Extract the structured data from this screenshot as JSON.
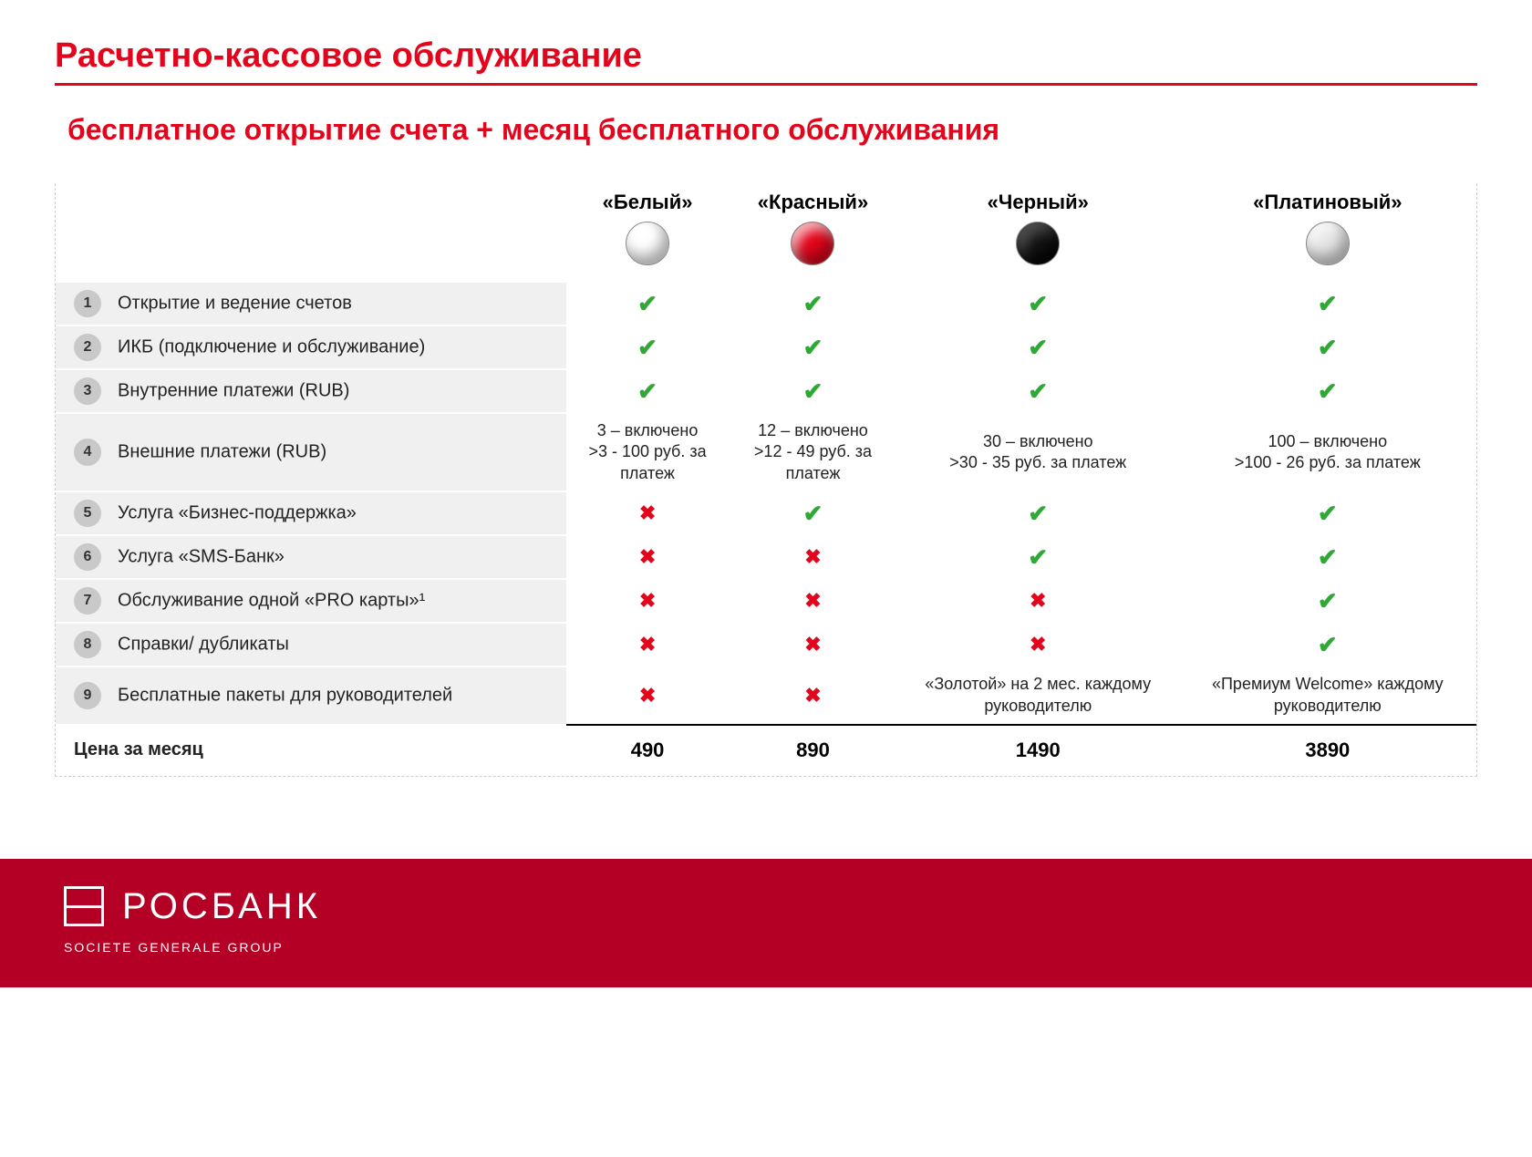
{
  "header": {
    "title": "Расчетно-кассовое обслуживание",
    "subtitle": "бесплатное открытие счета + месяц бесплатного обслуживания"
  },
  "colors": {
    "accent": "#e3051b",
    "check": "#2fa836",
    "cross": "#e3051b",
    "row_bg": "#f0f0f0",
    "footer_bg": "#b40024"
  },
  "packages": [
    {
      "name": "«Белый»",
      "ball_color": "#ffffff"
    },
    {
      "name": "«Красный»",
      "ball_color": "#e3051b"
    },
    {
      "name": "«Черный»",
      "ball_color": "#111111"
    },
    {
      "name": "«Платиновый»",
      "ball_color": "#e6e6e6"
    }
  ],
  "rows": [
    {
      "n": "1",
      "label": "Открытие и ведение счетов",
      "cells": [
        {
          "t": "check"
        },
        {
          "t": "check"
        },
        {
          "t": "check"
        },
        {
          "t": "check"
        }
      ]
    },
    {
      "n": "2",
      "label": "ИКБ (подключение и обслуживание)",
      "cells": [
        {
          "t": "check"
        },
        {
          "t": "check"
        },
        {
          "t": "check"
        },
        {
          "t": "check"
        }
      ]
    },
    {
      "n": "3",
      "label": "Внутренние платежи (RUB)",
      "cells": [
        {
          "t": "check"
        },
        {
          "t": "check"
        },
        {
          "t": "check"
        },
        {
          "t": "check"
        }
      ]
    },
    {
      "n": "4",
      "label": "Внешние платежи (RUB)",
      "cells": [
        {
          "t": "text",
          "v": "3 – включено\n>3 - 100 руб. за платеж"
        },
        {
          "t": "text",
          "v": "12 – включено\n>12 - 49 руб. за платеж"
        },
        {
          "t": "text",
          "v": "30 – включено\n>30 - 35 руб. за платеж"
        },
        {
          "t": "text",
          "v": "100 – включено\n>100 - 26 руб. за платеж"
        }
      ]
    },
    {
      "n": "5",
      "label": "Услуга «Бизнес-поддержка»",
      "cells": [
        {
          "t": "cross"
        },
        {
          "t": "check"
        },
        {
          "t": "check"
        },
        {
          "t": "check"
        }
      ]
    },
    {
      "n": "6",
      "label": "Услуга «SMS-Банк»",
      "cells": [
        {
          "t": "cross"
        },
        {
          "t": "cross"
        },
        {
          "t": "check"
        },
        {
          "t": "check"
        }
      ]
    },
    {
      "n": "7",
      "label": "Обслуживание одной «PRO карты»¹",
      "cells": [
        {
          "t": "cross"
        },
        {
          "t": "cross"
        },
        {
          "t": "cross"
        },
        {
          "t": "check"
        }
      ]
    },
    {
      "n": "8",
      "label": "Справки/ дубликаты",
      "cells": [
        {
          "t": "cross"
        },
        {
          "t": "cross"
        },
        {
          "t": "cross"
        },
        {
          "t": "check"
        }
      ]
    },
    {
      "n": "9",
      "label": "Бесплатные пакеты для руководителей",
      "cells": [
        {
          "t": "cross"
        },
        {
          "t": "cross"
        },
        {
          "t": "text",
          "v": "«Золотой» на 2 мес. каждому руководителю"
        },
        {
          "t": "text",
          "v": "«Премиум Welcome» каждому руководителю"
        }
      ]
    }
  ],
  "price": {
    "label": "Цена за месяц",
    "values": [
      "490",
      "890",
      "1490",
      "3890"
    ]
  },
  "footer": {
    "brand": "РОСБАНК",
    "sub": "SOCIETE GENERALE GROUP"
  }
}
